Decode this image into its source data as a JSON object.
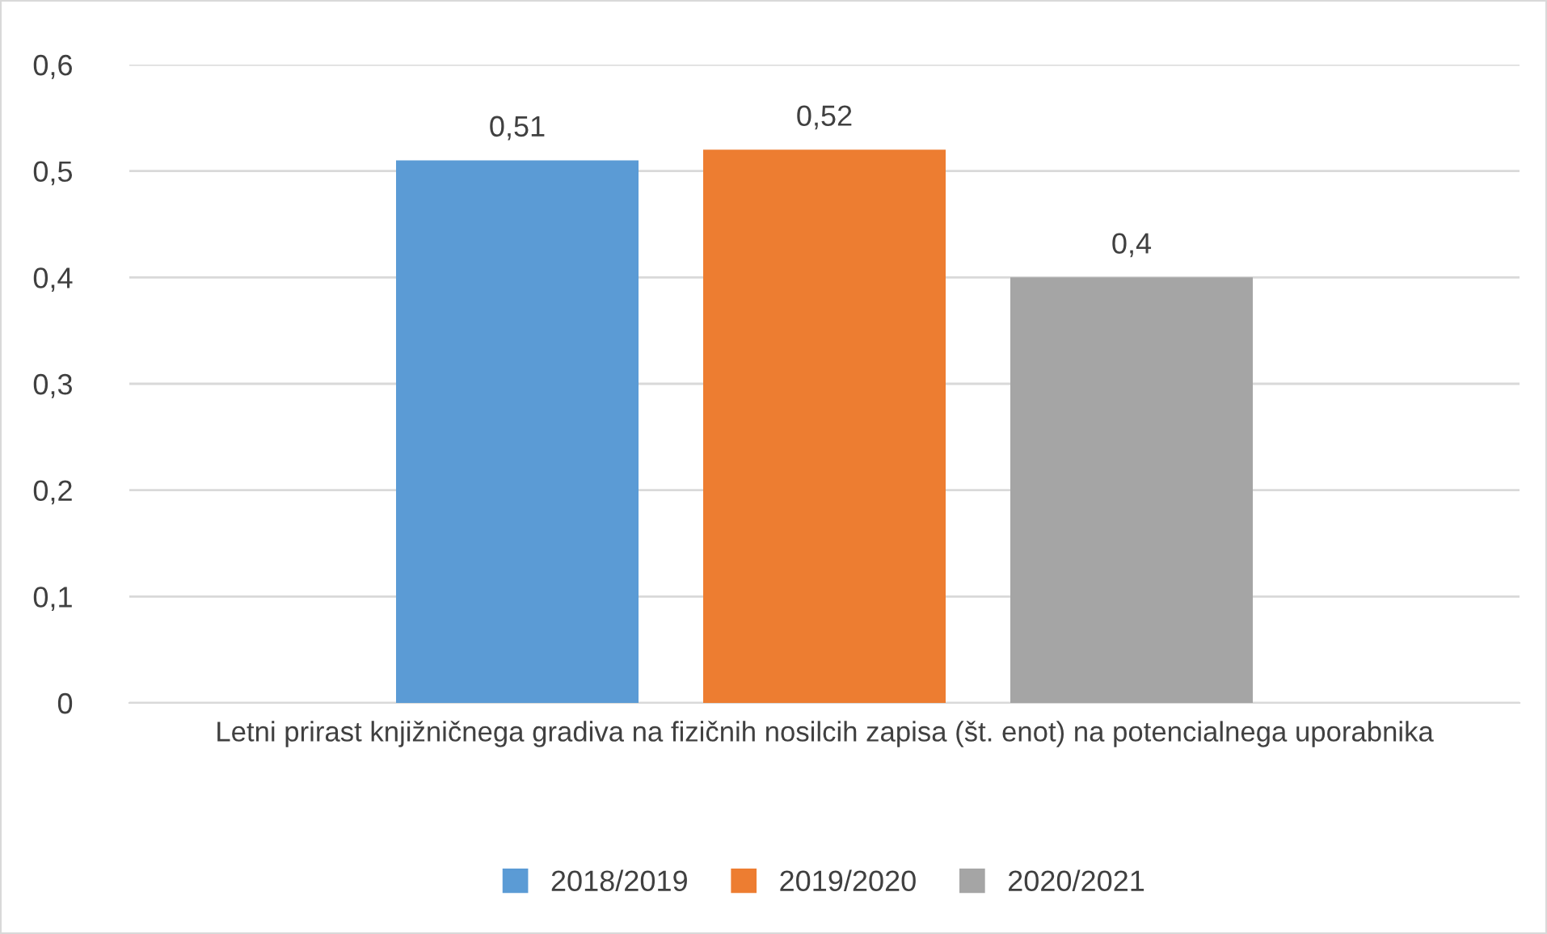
{
  "chart_data": {
    "type": "bar",
    "categories": [
      "Letni prirast knjižničnega gradiva na fizičnih nosilcih zapisa (št. enot) na potencialnega uporabnika"
    ],
    "series": [
      {
        "name": "2018/2019",
        "color": "#5b9bd5",
        "values": [
          0.51
        ],
        "value_labels": [
          "0,51"
        ]
      },
      {
        "name": "2019/2020",
        "color": "#ed7d31",
        "values": [
          0.52
        ],
        "value_labels": [
          "0,52"
        ]
      },
      {
        "name": "2020/2021",
        "color": "#a5a5a5",
        "values": [
          0.4
        ],
        "value_labels": [
          "0,4"
        ]
      }
    ],
    "ylim": [
      0,
      0.6
    ],
    "yticks": [
      {
        "value": 0,
        "label": "0"
      },
      {
        "value": 0.1,
        "label": "0,1"
      },
      {
        "value": 0.2,
        "label": "0,2"
      },
      {
        "value": 0.3,
        "label": "0,3"
      },
      {
        "value": 0.4,
        "label": "0,4"
      },
      {
        "value": 0.5,
        "label": "0,5"
      },
      {
        "value": 0.6,
        "label": "0,6"
      }
    ],
    "grid": "y",
    "legend": "bottom"
  }
}
